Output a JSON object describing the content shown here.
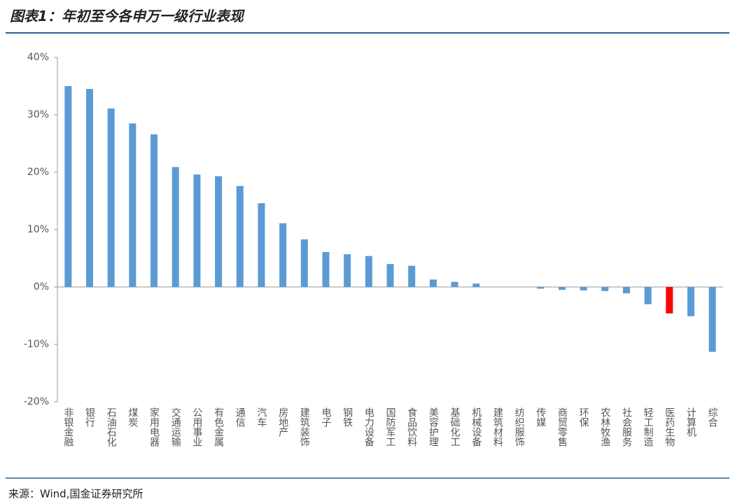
{
  "chart_data": {
    "type": "bar",
    "title": "图表1：年初至今各申万一级行业表现",
    "source": "来源：Wind,国金证券研究所",
    "categories": [
      "非银金融",
      "银行",
      "石油石化",
      "煤炭",
      "家用电器",
      "交通运输",
      "公用事业",
      "有色金属",
      "通信",
      "汽车",
      "房地产",
      "建筑装饰",
      "电子",
      "钢铁",
      "电力设备",
      "国防军工",
      "食品饮料",
      "美容护理",
      "基础化工",
      "机械设备",
      "建筑材料",
      "纺织服饰",
      "传媒",
      "商贸零售",
      "环保",
      "农林牧渔",
      "社会服务",
      "轻工制造",
      "医药生物",
      "计算机",
      "综合"
    ],
    "values": [
      35.0,
      34.5,
      31.1,
      28.5,
      26.6,
      20.9,
      19.6,
      19.3,
      17.6,
      14.6,
      11.1,
      8.3,
      6.1,
      5.7,
      5.4,
      4.0,
      3.7,
      1.3,
      0.9,
      0.6,
      0.0,
      0.0,
      -0.3,
      -0.5,
      -0.6,
      -0.7,
      -1.1,
      -3.0,
      -4.6,
      -5.1,
      -11.3
    ],
    "colors": [
      "#5b9bd5",
      "#5b9bd5",
      "#5b9bd5",
      "#5b9bd5",
      "#5b9bd5",
      "#5b9bd5",
      "#5b9bd5",
      "#5b9bd5",
      "#5b9bd5",
      "#5b9bd5",
      "#5b9bd5",
      "#5b9bd5",
      "#5b9bd5",
      "#5b9bd5",
      "#5b9bd5",
      "#5b9bd5",
      "#5b9bd5",
      "#5b9bd5",
      "#5b9bd5",
      "#5b9bd5",
      "#5b9bd5",
      "#5b9bd5",
      "#5b9bd5",
      "#5b9bd5",
      "#5b9bd5",
      "#5b9bd5",
      "#5b9bd5",
      "#5b9bd5",
      "#ff0000",
      "#5b9bd5",
      "#5b9bd5"
    ],
    "ylim": [
      -20,
      40
    ],
    "yticks": [
      {
        "value": -20,
        "label": "-20%"
      },
      {
        "value": -10,
        "label": "-10%"
      },
      {
        "value": 0,
        "label": "0%"
      },
      {
        "value": 10,
        "label": "10%"
      },
      {
        "value": 20,
        "label": "20%"
      },
      {
        "value": 30,
        "label": "30%"
      },
      {
        "value": 40,
        "label": "40%"
      }
    ],
    "grid": false
  }
}
